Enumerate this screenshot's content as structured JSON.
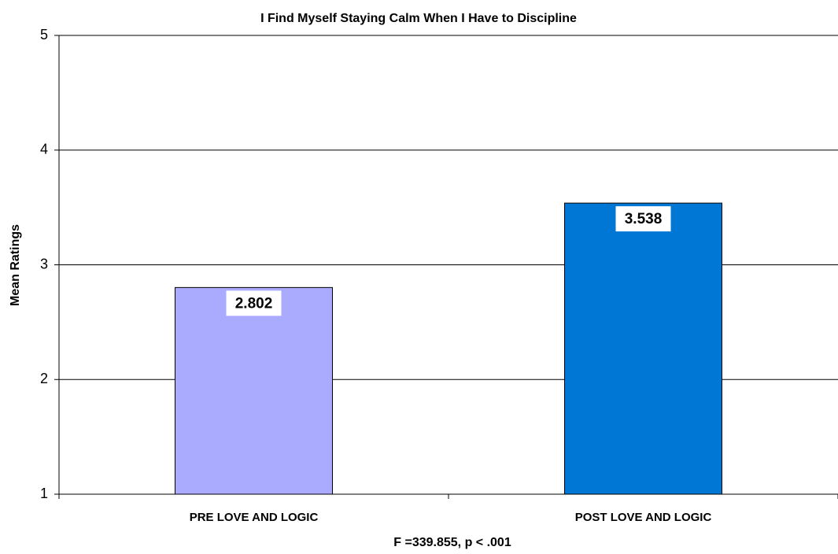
{
  "chart_data": {
    "type": "bar",
    "title": "I Find Myself Staying Calm When I Have to Discipline",
    "y_label": "Mean Ratings",
    "x_label": "F =339.855, p < .001",
    "categories": [
      "PRE LOVE AND LOGIC",
      "POST LOVE AND LOGIC"
    ],
    "values": [
      2.802,
      3.538
    ],
    "colors": [
      "#aaaaff",
      "#0077d4"
    ],
    "ylim": [
      1,
      5
    ],
    "yticks": [
      1,
      2,
      3,
      4,
      5
    ],
    "grid": true
  }
}
